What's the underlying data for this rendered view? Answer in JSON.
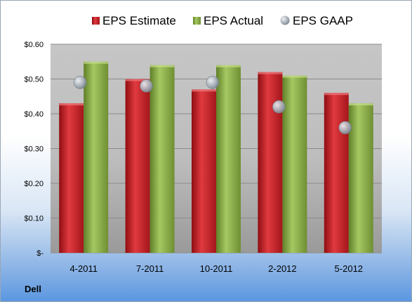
{
  "company": "Dell",
  "colors": {
    "estimate": "#c0161c",
    "actual": "#8db044",
    "gaap": "#aab2bc"
  },
  "chart_data": {
    "type": "bar",
    "categories": [
      "4-2011",
      "7-2011",
      "10-2011",
      "2-2012",
      "5-2012"
    ],
    "series": [
      {
        "name": "EPS Estimate",
        "type": "bar",
        "values": [
          0.43,
          0.5,
          0.47,
          0.52,
          0.46
        ]
      },
      {
        "name": "EPS Actual",
        "type": "bar",
        "values": [
          0.55,
          0.54,
          0.54,
          0.51,
          0.43
        ]
      },
      {
        "name": "EPS GAAP",
        "type": "scatter",
        "values": [
          0.49,
          0.48,
          0.49,
          0.42,
          0.36
        ]
      }
    ],
    "ylim": [
      0,
      0.6
    ],
    "yticks": [
      0,
      0.1,
      0.2,
      0.3,
      0.4,
      0.5,
      0.6
    ],
    "ytick_labels": [
      "$-",
      "$0.10",
      "$0.20",
      "$0.30",
      "$0.40",
      "$0.50",
      "$0.60"
    ],
    "legend_position": "top",
    "grid": true
  }
}
